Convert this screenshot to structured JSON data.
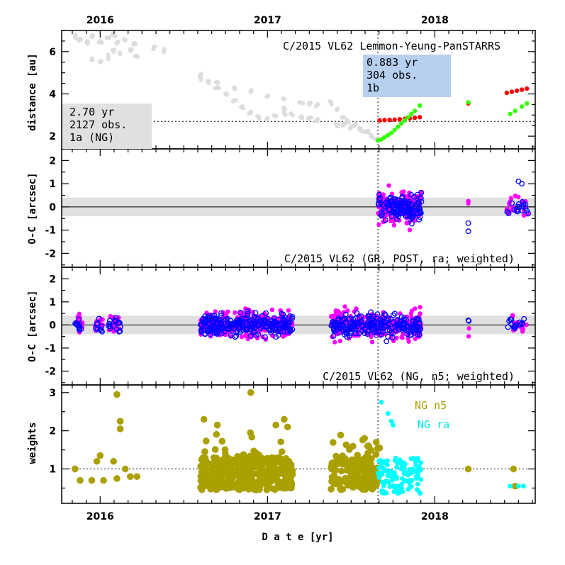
{
  "chart_data": {
    "type": "scatter",
    "xlabel": "D a t e [yr]",
    "xlim": [
      2015.77,
      2018.6
    ],
    "x_ticks": [
      "2016",
      "2017",
      "2018"
    ],
    "year_positions": [
      2016,
      2017,
      2018
    ],
    "colors": {
      "sun_distance": "#dddddd",
      "earth_distance_gray": "#dddddd",
      "red": "#ff0000",
      "green": "#33ff00",
      "magenta": "#ff00ff",
      "blue": "#0000ff",
      "olive": "#aaa000",
      "cyan": "#00ffff",
      "band": "#e0e0e0",
      "box_blue": "#b8d0f0",
      "box_gray": "#e0e0e0"
    },
    "split_date": 2017.66,
    "panels": [
      {
        "id": "distance",
        "ylabel": "distance [au]",
        "ylim": [
          1.4,
          7.0
        ],
        "y_ticks": [
          2,
          4,
          6
        ],
        "title": "C/2015 VL62 Lemmon-Yeung-PanSTARRS",
        "reference_line": 2.7,
        "box_left": {
          "lines": [
            "2.70 yr",
            "2127 obs.",
            "1a (NG)"
          ]
        },
        "box_right": {
          "lines": [
            "0.883 yr",
            "304 obs.",
            "1b"
          ]
        },
        "series": [
          {
            "color": "gray",
            "points": [
              [
                2015.85,
                6.75
              ],
              [
                2015.88,
                6.6
              ],
              [
                2015.92,
                6.45
              ],
              [
                2015.95,
                6.7
              ],
              [
                2016.0,
                6.5
              ],
              [
                2016.05,
                6.65
              ],
              [
                2016.08,
                6.8
              ],
              [
                2016.1,
                6.4
              ],
              [
                2016.15,
                6.55
              ],
              [
                2016.2,
                6.35
              ],
              [
                2016.32,
                6.2
              ],
              [
                2016.38,
                6.05
              ],
              [
                2015.95,
                5.6
              ],
              [
                2016.0,
                5.5
              ],
              [
                2016.05,
                5.75
              ],
              [
                2016.08,
                6.0
              ],
              [
                2016.12,
                5.9
              ],
              [
                2016.18,
                6.1
              ],
              [
                2016.22,
                5.8
              ]
            ]
          },
          {
            "color": "gray",
            "points": [
              [
                2016.6,
                4.9
              ],
              [
                2016.65,
                4.6
              ],
              [
                2016.7,
                4.3
              ],
              [
                2016.75,
                4.0
              ],
              [
                2016.8,
                3.7
              ],
              [
                2016.85,
                3.4
              ],
              [
                2016.9,
                3.15
              ],
              [
                2016.95,
                2.9
              ],
              [
                2017.0,
                2.85
              ],
              [
                2017.05,
                2.95
              ],
              [
                2017.1,
                3.1
              ],
              [
                2016.6,
                4.75
              ],
              [
                2016.7,
                4.55
              ],
              [
                2016.8,
                4.3
              ],
              [
                2016.9,
                4.1
              ],
              [
                2017.0,
                3.9
              ],
              [
                2017.1,
                3.75
              ],
              [
                2017.2,
                3.6
              ],
              [
                2017.25,
                3.55
              ],
              [
                2017.3,
                3.5
              ],
              [
                2017.1,
                3.25
              ],
              [
                2017.15,
                3.0
              ],
              [
                2017.2,
                2.9
              ],
              [
                2017.25,
                2.85
              ],
              [
                2017.3,
                2.8
              ]
            ]
          },
          {
            "color": "gray",
            "points": [
              [
                2017.38,
                3.6
              ],
              [
                2017.42,
                3.3
              ],
              [
                2017.45,
                2.9
              ],
              [
                2017.48,
                2.7
              ],
              [
                2017.52,
                2.5
              ],
              [
                2017.55,
                2.35
              ],
              [
                2017.58,
                2.2
              ],
              [
                2017.62,
                2.0
              ],
              [
                2017.65,
                1.85
              ],
              [
                2017.42,
                2.55
              ],
              [
                2017.45,
                2.5
              ],
              [
                2017.5,
                2.45
              ],
              [
                2017.55,
                2.35
              ],
              [
                2017.6,
                2.25
              ]
            ]
          },
          {
            "color": "red",
            "points": [
              [
                2017.67,
                2.75
              ],
              [
                2017.7,
                2.76
              ],
              [
                2017.73,
                2.77
              ],
              [
                2017.76,
                2.78
              ],
              [
                2017.79,
                2.8
              ],
              [
                2017.82,
                2.82
              ],
              [
                2017.85,
                2.84
              ],
              [
                2017.88,
                2.87
              ],
              [
                2017.91,
                2.9
              ],
              [
                2018.2,
                3.55
              ],
              [
                2018.43,
                4.05
              ],
              [
                2018.46,
                4.1
              ],
              [
                2018.49,
                4.15
              ],
              [
                2018.52,
                4.2
              ],
              [
                2018.55,
                4.25
              ]
            ]
          },
          {
            "color": "green",
            "points": [
              [
                2017.66,
                1.8
              ],
              [
                2017.68,
                1.85
              ],
              [
                2017.7,
                1.95
              ],
              [
                2017.72,
                2.05
              ],
              [
                2017.74,
                2.15
              ],
              [
                2017.76,
                2.3
              ],
              [
                2017.78,
                2.45
              ],
              [
                2017.8,
                2.6
              ],
              [
                2017.82,
                2.75
              ],
              [
                2017.84,
                2.9
              ],
              [
                2017.86,
                3.05
              ],
              [
                2017.88,
                3.2
              ],
              [
                2017.91,
                3.45
              ],
              [
                2018.2,
                3.6
              ],
              [
                2018.45,
                3.05
              ],
              [
                2018.48,
                3.2
              ],
              [
                2018.52,
                3.4
              ],
              [
                2018.55,
                3.55
              ]
            ]
          }
        ]
      },
      {
        "id": "oc_post",
        "ylabel": "O-C [arcsec]",
        "ylim": [
          -2.6,
          2.5
        ],
        "y_ticks": [
          -2,
          -1,
          0,
          1,
          2
        ],
        "title": "C/2015 VL62 (GR, POST, ra; weighted)",
        "band": [
          -0.4,
          0.4
        ],
        "x_range": [
          2017.66,
          2017.92
        ],
        "late_x": [
          2018.2,
          2018.43,
          2018.55
        ]
      },
      {
        "id": "oc_ng",
        "ylabel": "O-C [arcsec]",
        "ylim": [
          -2.6,
          2.5
        ],
        "y_ticks": [
          -2,
          -1,
          0,
          1,
          2
        ],
        "title": "C/2015 VL62 (NG, n5; weighted)",
        "band": [
          -0.4,
          0.4
        ],
        "x_ranges": [
          [
            2015.85,
            2015.9
          ],
          [
            2015.97,
            2016.02
          ],
          [
            2016.05,
            2016.12
          ],
          [
            2016.6,
            2017.15
          ],
          [
            2017.38,
            2017.92
          ],
          [
            2018.2,
            2018.2
          ],
          [
            2018.43,
            2018.55
          ]
        ]
      },
      {
        "id": "weights",
        "ylabel": "weights",
        "ylim": [
          0.1,
          3.2
        ],
        "y_ticks": [
          1,
          2,
          3
        ],
        "reference_line": 1.0,
        "legend": [
          {
            "label": "NG n5",
            "color": "olive"
          },
          {
            "label": "NG ra",
            "color": "cyan"
          }
        ],
        "olive_points": [
          [
            2015.85,
            1.0
          ],
          [
            2015.88,
            0.7
          ],
          [
            2015.95,
            0.7
          ],
          [
            2015.98,
            1.2
          ],
          [
            2016.0,
            1.35
          ],
          [
            2016.02,
            0.7
          ],
          [
            2016.08,
            1.2
          ],
          [
            2016.1,
            0.75
          ],
          [
            2016.1,
            2.95
          ],
          [
            2016.12,
            2.25
          ],
          [
            2016.12,
            2.05
          ],
          [
            2016.15,
            1.0
          ],
          [
            2016.18,
            0.8
          ],
          [
            2016.22,
            0.8
          ],
          [
            2016.62,
            2.3
          ],
          [
            2016.7,
            2.15
          ],
          [
            2016.9,
            3.0
          ],
          [
            2017.05,
            2.15
          ],
          [
            2017.1,
            2.3
          ],
          [
            2017.12,
            2.1
          ],
          [
            2017.58,
            1.8
          ],
          [
            2017.65,
            1.7
          ],
          [
            2017.67,
            1.55
          ],
          [
            2018.2,
            1.0
          ],
          [
            2018.47,
            1.0
          ],
          [
            2018.48,
            0.55
          ]
        ],
        "olive_cloud_ranges": [
          [
            2016.6,
            2017.15
          ],
          [
            2017.38,
            2017.66
          ]
        ],
        "cyan_points": [
          [
            2017.68,
            2.75
          ],
          [
            2017.72,
            2.45
          ],
          [
            2017.74,
            2.25
          ],
          [
            2017.75,
            2.15
          ],
          [
            2017.8,
            1.0
          ],
          [
            2017.85,
            0.7
          ],
          [
            2017.9,
            0.8
          ],
          [
            2018.45,
            0.55
          ],
          [
            2018.5,
            0.55
          ],
          [
            2018.53,
            0.55
          ]
        ],
        "cyan_cloud_range": [
          2017.66,
          2000.0
        ]
      }
    ]
  }
}
